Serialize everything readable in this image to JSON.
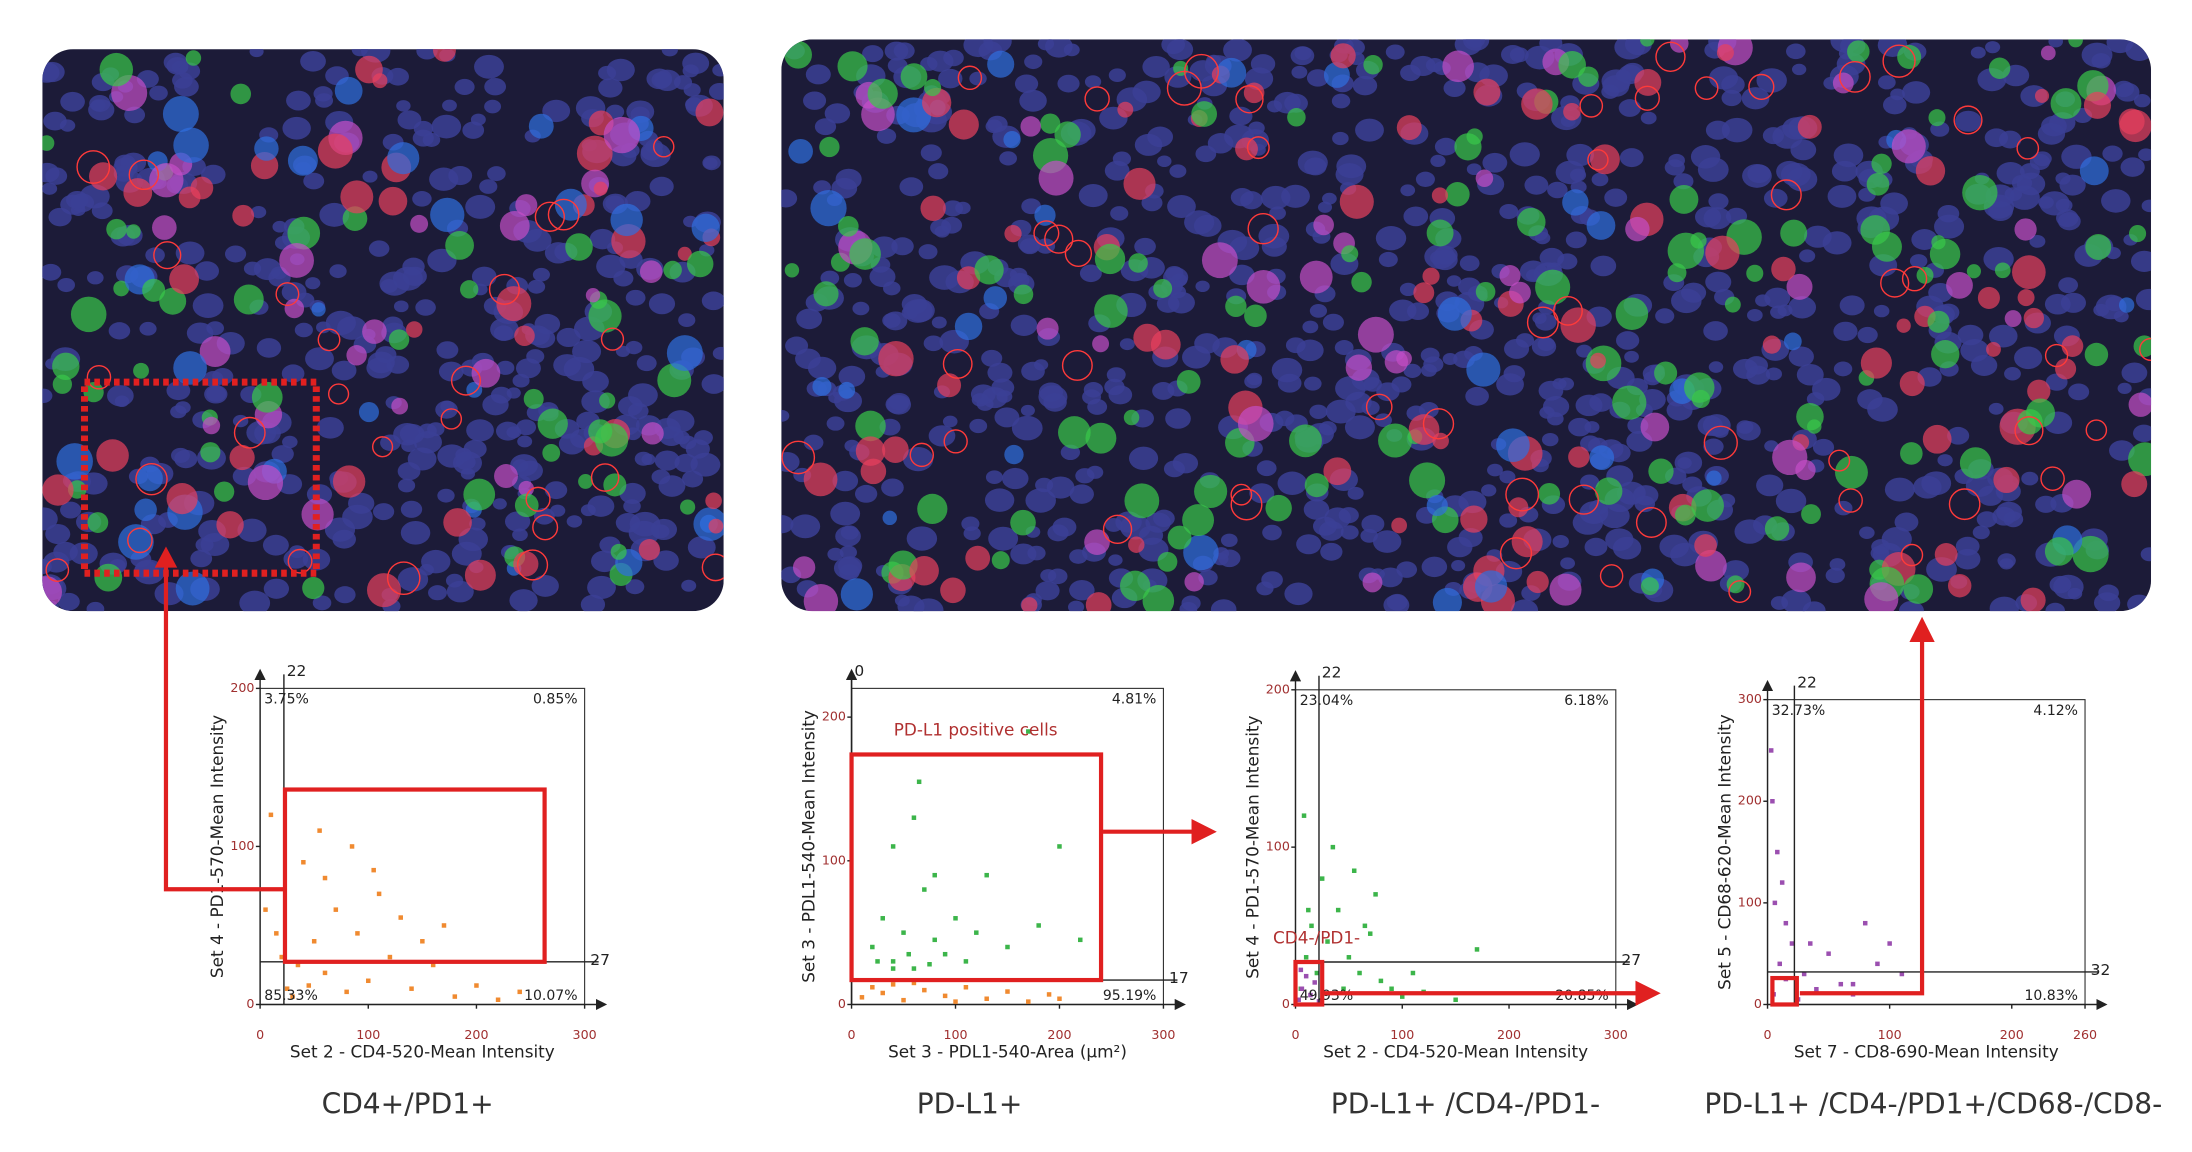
{
  "chart_data": [
    {
      "type": "scatter",
      "caption": "CD4+/PD1+",
      "xlabel": "Set 2 - CD4-520-Mean Intensity",
      "ylabel": "Set 4 - PD1-570-Mean Intensity",
      "xlim": [
        0,
        300
      ],
      "ylim": [
        0,
        200
      ],
      "xticks": [
        0,
        100,
        200,
        300
      ],
      "yticks": [
        0,
        100,
        200
      ],
      "x_threshold": 22,
      "y_threshold": 27,
      "quadrant_labels": {
        "top_left": "3.75%",
        "top_right": "0.85%",
        "bottom_left": "85.33%",
        "bottom_right": "10.07%"
      },
      "gate": {
        "x": [
          23,
          263
        ],
        "y": [
          27,
          136
        ]
      },
      "series": [
        {
          "color": "#f08a30",
          "x": [
            30,
            45,
            60,
            80,
            100,
            120,
            140,
            160,
            180,
            200,
            220,
            50,
            70,
            90,
            110,
            130,
            150,
            40,
            60,
            10,
            5,
            20,
            35,
            25,
            85,
            240,
            15,
            55,
            105,
            170
          ],
          "y": [
            5,
            12,
            20,
            8,
            15,
            30,
            10,
            25,
            5,
            12,
            3,
            40,
            60,
            45,
            70,
            55,
            40,
            90,
            80,
            120,
            60,
            30,
            25,
            10,
            100,
            8,
            45,
            110,
            85,
            50
          ]
        }
      ]
    },
    {
      "type": "scatter",
      "caption": "PD-L1+",
      "xlabel": "Set 3 - PDL1-540-Area (µm²)",
      "ylabel": "Set 3 - PDL1-540-Mean Intensity",
      "xlim": [
        0,
        300
      ],
      "ylim": [
        0,
        220
      ],
      "xticks": [
        0,
        100,
        200,
        300
      ],
      "yticks": [
        0,
        100,
        200
      ],
      "x_threshold": 0,
      "y_threshold": 17,
      "quadrant_labels": {
        "top_right": "4.81%",
        "bottom_right": "95.19%"
      },
      "annotation": "PD-L1 positive cells",
      "gate": {
        "x": [
          0,
          240
        ],
        "y": [
          17,
          174
        ]
      },
      "series": [
        {
          "color": "#3cb54a",
          "x": [
            20,
            30,
            40,
            50,
            60,
            70,
            80,
            90,
            100,
            110,
            120,
            40,
            60,
            80,
            130,
            150,
            180,
            220,
            40,
            25,
            55,
            75,
            200,
            170,
            65
          ],
          "y": [
            40,
            60,
            30,
            50,
            25,
            80,
            45,
            35,
            60,
            30,
            50,
            110,
            130,
            90,
            90,
            40,
            55,
            45,
            25,
            30,
            35,
            28,
            110,
            190,
            155
          ]
        },
        {
          "color": "#f08a30",
          "x": [
            10,
            30,
            50,
            70,
            90,
            110,
            130,
            150,
            170,
            190,
            40,
            60,
            100,
            200,
            20
          ],
          "y": [
            5,
            8,
            3,
            10,
            6,
            12,
            4,
            9,
            2,
            7,
            14,
            15,
            2,
            4,
            12
          ]
        }
      ]
    },
    {
      "type": "scatter",
      "caption": "PD-L1+ /CD4-/PD1-",
      "xlabel": "Set 2 - CD4-520-Mean Intensity",
      "ylabel": "Set 4 - PD1-570-Mean Intensity",
      "xlim": [
        0,
        300
      ],
      "ylim": [
        0,
        200
      ],
      "xticks": [
        0,
        100,
        200,
        300
      ],
      "yticks": [
        0,
        100,
        200
      ],
      "x_threshold": 22,
      "y_threshold": 27,
      "quadrant_labels": {
        "top_left": "23.04%",
        "top_right": "6.18%",
        "bottom_left": "49.93%",
        "bottom_right": "20.85%"
      },
      "annotation": "CD4-/PD1-",
      "gate": {
        "x": [
          0,
          25
        ],
        "y": [
          0,
          27
        ]
      },
      "series": [
        {
          "color": "#3cb54a",
          "x": [
            5,
            10,
            15,
            20,
            25,
            30,
            40,
            50,
            60,
            70,
            80,
            90,
            100,
            120,
            150,
            170,
            55,
            35,
            65,
            8,
            12,
            45,
            110,
            75
          ],
          "y": [
            10,
            30,
            50,
            20,
            80,
            40,
            60,
            30,
            20,
            45,
            15,
            10,
            5,
            8,
            3,
            35,
            85,
            100,
            50,
            120,
            60,
            10,
            20,
            70
          ]
        },
        {
          "color": "#9b4fb0",
          "x": [
            3,
            6,
            10,
            14,
            18,
            5,
            22
          ],
          "y": [
            3,
            10,
            18,
            6,
            14,
            22,
            2
          ]
        }
      ]
    },
    {
      "type": "scatter",
      "caption": "PD-L1+ /CD4-/PD1+/CD68-/CD8-",
      "xlabel": "Set 7 - CD8-690-Mean Intensity",
      "ylabel": "Set 5 - CD68-620-Mean Intensity",
      "xlim": [
        0,
        260
      ],
      "ylim": [
        0,
        300
      ],
      "xticks": [
        0,
        100,
        200,
        260
      ],
      "yticks": [
        0,
        100,
        200,
        300
      ],
      "x_threshold": 22,
      "y_threshold": 32,
      "quadrant_labels": {
        "top_left": "32.73%",
        "top_right": "4.12%",
        "bottom_right": "10.83%"
      },
      "gate": {
        "x": [
          4,
          24
        ],
        "y": [
          0,
          26
        ]
      },
      "series": [
        {
          "color": "#9b4fb0",
          "x": [
            5,
            10,
            15,
            8,
            4,
            12,
            20,
            30,
            40,
            50,
            60,
            70,
            90,
            100,
            80,
            110,
            70,
            25,
            15,
            3,
            35,
            6
          ],
          "y": [
            10,
            40,
            80,
            150,
            200,
            120,
            60,
            30,
            15,
            50,
            20,
            10,
            40,
            60,
            80,
            30,
            20,
            5,
            25,
            250,
            60,
            100
          ]
        }
      ]
    }
  ]
}
